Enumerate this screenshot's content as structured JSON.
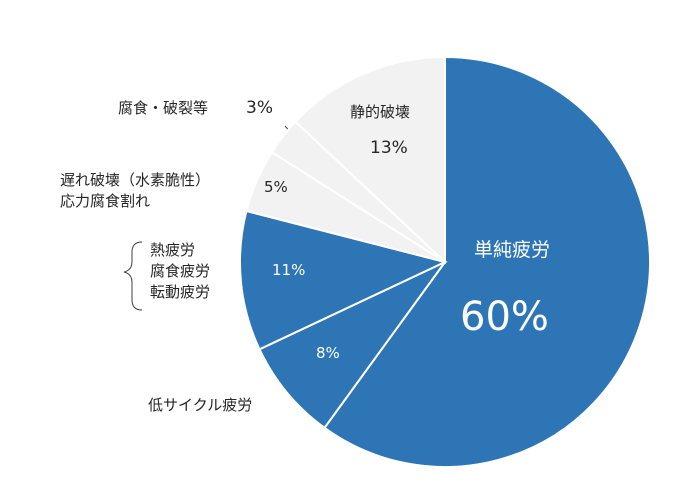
{
  "chart_data": {
    "type": "pie",
    "categories": [
      "単純疲労",
      "低サイクル疲労",
      "熱疲労\n腐食疲労\n転動疲労",
      "遅れ破壊（水素脆性）\n応力腐食割れ",
      "腐食・破裂等",
      "静的破壊"
    ],
    "values": [
      60,
      8,
      11,
      5,
      3,
      13
    ],
    "value_labels": [
      "60%",
      "8%",
      "11%",
      "5%",
      "3%",
      "13%"
    ],
    "colors": [
      "#2e75b6",
      "#2e75b6",
      "#2e75b6",
      "#f2f2f2",
      "#f2f2f2",
      "#f2f2f2"
    ]
  }
}
